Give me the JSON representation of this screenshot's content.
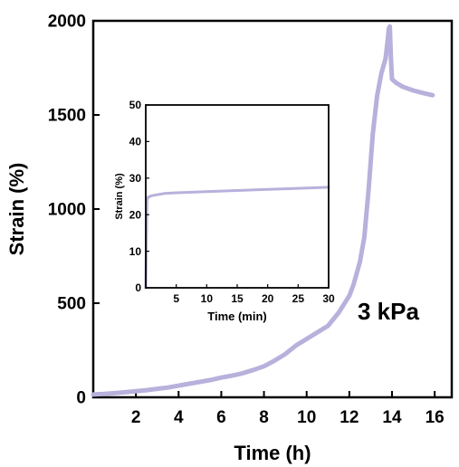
{
  "chart_data": [
    {
      "type": "line",
      "xlabel": "Time (h)",
      "ylabel": "Strain (%)",
      "xlim": [
        0,
        16.8
      ],
      "ylim": [
        0,
        2000
      ],
      "xticks": [
        2,
        4,
        6,
        8,
        10,
        12,
        14,
        16
      ],
      "yticks": [
        0,
        500,
        1000,
        1500,
        2000
      ],
      "annotation": "3 kPa",
      "grid": false,
      "line_color": "#b7b1dc",
      "series": [
        {
          "x": [
            0,
            0.5,
            1,
            1.5,
            2,
            2.5,
            3,
            3.5,
            4,
            4.5,
            5,
            5.5,
            6,
            6.5,
            7,
            7.5,
            8,
            8.5,
            9,
            9.5,
            10,
            10.5,
            11,
            11.5,
            12,
            12.2,
            12.5,
            12.7,
            12.9,
            13.1,
            13.3,
            13.5,
            13.7,
            13.8,
            13.85,
            13.9,
            13.95,
            14.0,
            14.2,
            14.5,
            15,
            15.5,
            15.9
          ],
          "y": [
            15,
            18,
            22,
            27,
            32,
            38,
            45,
            52,
            62,
            72,
            82,
            92,
            105,
            115,
            128,
            145,
            165,
            195,
            230,
            275,
            310,
            345,
            380,
            450,
            540,
            600,
            720,
            850,
            1100,
            1400,
            1600,
            1720,
            1800,
            1900,
            1960,
            1970,
            1800,
            1690,
            1670,
            1650,
            1630,
            1615,
            1605
          ]
        }
      ]
    },
    {
      "type": "line",
      "xlabel": "Time (min)",
      "ylabel": "Strain (%)",
      "xlim": [
        0,
        30
      ],
      "ylim": [
        0,
        50
      ],
      "xticks": [
        5,
        10,
        15,
        20,
        25,
        30
      ],
      "yticks": [
        0,
        10,
        20,
        30,
        40,
        50
      ],
      "grid": false,
      "line_color": "#b7b1dc",
      "series": [
        {
          "x": [
            0,
            0.2,
            0.4,
            1,
            2,
            3,
            5,
            10,
            15,
            20,
            25,
            30
          ],
          "y": [
            0,
            24,
            24.8,
            25.2,
            25.5,
            25.8,
            26,
            26.3,
            26.6,
            26.9,
            27.2,
            27.5
          ]
        }
      ]
    }
  ]
}
